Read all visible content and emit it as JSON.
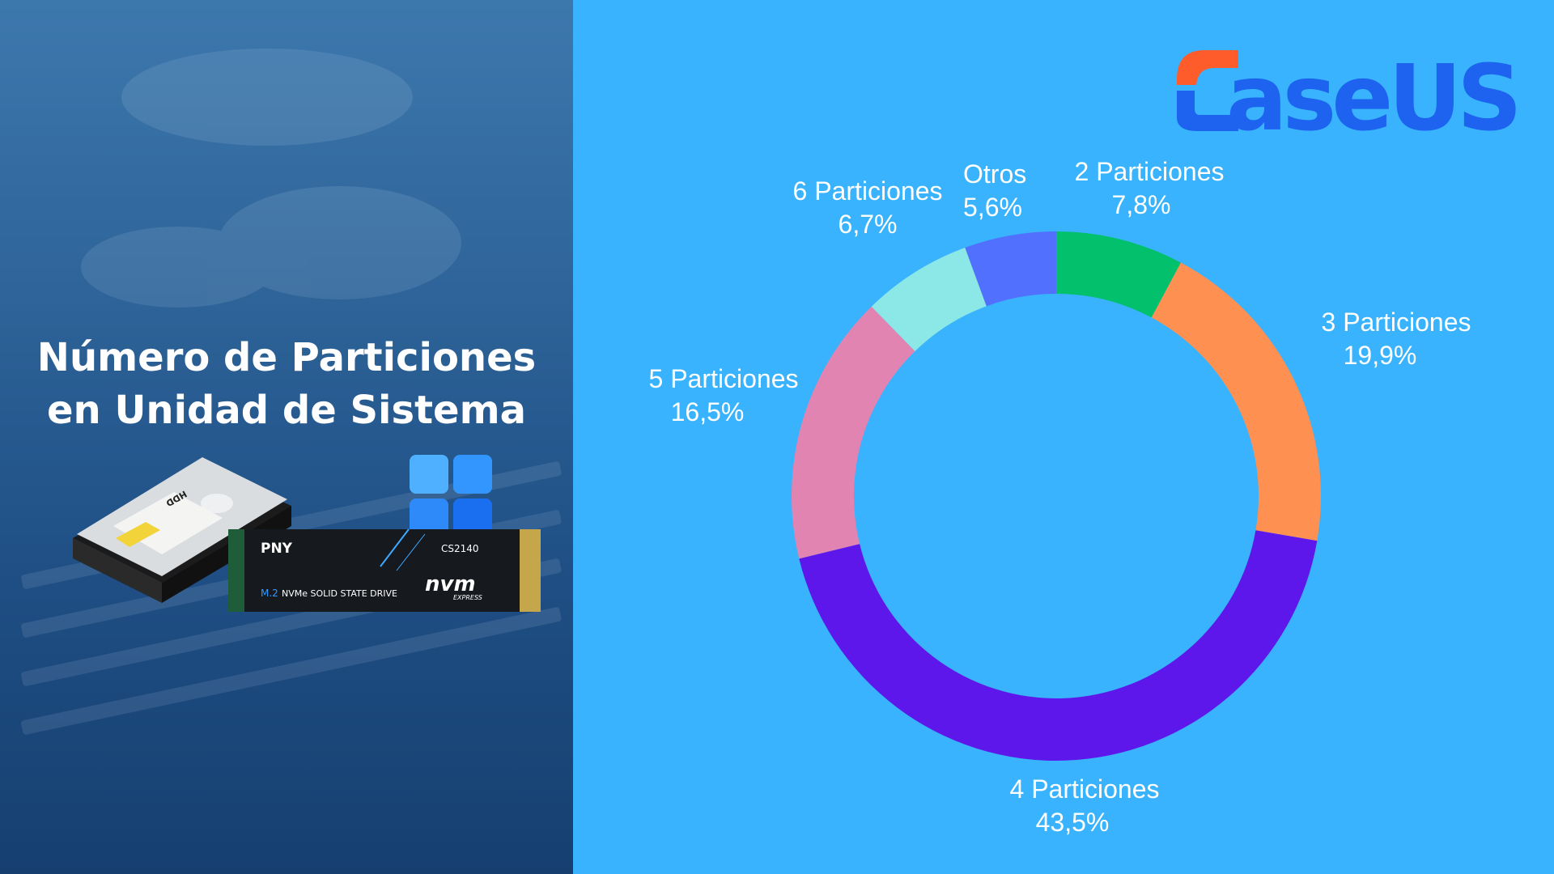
{
  "left_panel": {
    "title_line1": "Número de Particiones",
    "title_line2": "en Unidad de Sistema",
    "ssd_brand": "PNY",
    "ssd_model": "CS2140",
    "ssd_prefix": "M.2",
    "ssd_desc": "NVMe SOLID STATE DRIVE",
    "ssd_logo": "nvm",
    "ssd_logo_sub": "EXPRESS",
    "hdd_label": "HDD",
    "icons": [
      "hard-drive-image",
      "windows-logo",
      "nvme-ssd-image"
    ]
  },
  "logo": {
    "text": "aseUS",
    "icon": "easeus-e-mark",
    "colors": [
      "#ff5c2b",
      "#1d63f0"
    ]
  },
  "chart_data": {
    "type": "pie",
    "variant": "donut",
    "title": "",
    "slices": [
      {
        "name": "2",
        "label": "Particiones",
        "value_text": "7,8%",
        "value": 7.8,
        "color": "#02c06c"
      },
      {
        "name": "3",
        "label": "Particiones",
        "value_text": "19,9%",
        "value": 19.9,
        "color": "#fe9152"
      },
      {
        "name": "4",
        "label": "Particiones",
        "value_text": "43,5%",
        "value": 43.5,
        "color": "#5e17eb"
      },
      {
        "name": "5",
        "label": "Particiones",
        "value_text": "16,5%",
        "value": 16.5,
        "color": "#e284b1"
      },
      {
        "name": "6",
        "label": "Particiones",
        "value_text": "6,7%",
        "value": 6.7,
        "color": "#8ce8e6"
      },
      {
        "name": "",
        "label": "Otros",
        "value_text": "5,6%",
        "value": 5.6,
        "color": "#5170fe"
      }
    ]
  }
}
